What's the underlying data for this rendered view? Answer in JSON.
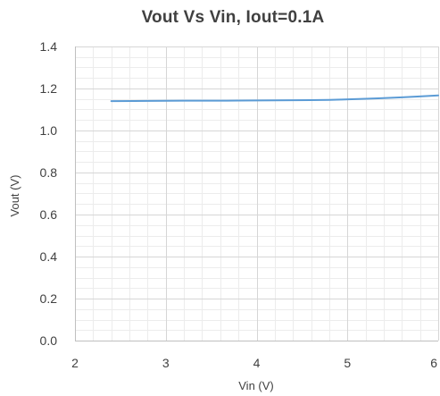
{
  "chart_data": {
    "type": "line",
    "title": "Vout Vs Vin, Iout=0.1A",
    "xlabel": "Vin (V)",
    "ylabel": "Vout (V)",
    "xlim": [
      2,
      6
    ],
    "ylim": [
      0,
      1.4
    ],
    "x_ticks": [
      2,
      3,
      4,
      5,
      6
    ],
    "y_ticks": [
      0.0,
      0.2,
      0.4,
      0.6,
      0.8,
      1.0,
      1.2,
      1.4
    ],
    "x_tick_labels": [
      "2",
      "3",
      "4",
      "5",
      "6"
    ],
    "y_tick_labels": [
      "0.0",
      "0.2",
      "0.4",
      "0.6",
      "0.8",
      "1.0",
      "1.2",
      "1.4"
    ],
    "grid": true,
    "minor_grid": true,
    "legend": false,
    "series": [
      {
        "color": "#5b9bd5",
        "x": [
          2.4,
          2.8,
          3.2,
          3.6,
          4.0,
          4.4,
          4.8,
          5.2,
          5.6,
          6.0
        ],
        "y": [
          1.14,
          1.141,
          1.142,
          1.142,
          1.143,
          1.144,
          1.146,
          1.151,
          1.158,
          1.167
        ]
      }
    ]
  }
}
